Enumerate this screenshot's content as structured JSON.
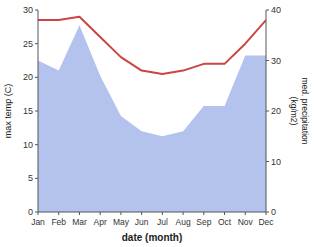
{
  "chart_data": {
    "type": "line",
    "categories": [
      "Jan",
      "Feb",
      "Mar",
      "Apr",
      "May",
      "Jun",
      "Jul",
      "Aug",
      "Sep",
      "Oct",
      "Nov",
      "Dec"
    ],
    "xlabel": "date (month)",
    "ylabel": "max temp (C)",
    "y2label": "med. precipitation\n(kg/m2)",
    "ylim": [
      0,
      30
    ],
    "yticks": [
      0,
      5,
      10,
      15,
      20,
      25,
      30
    ],
    "y2lim": [
      0,
      40
    ],
    "y2ticks": [
      0,
      10,
      20,
      30,
      40
    ],
    "grid": false,
    "series": [
      {
        "type": "area",
        "axis": "y2",
        "color": "#b3c3ee",
        "values": [
          30,
          28,
          37,
          27,
          19,
          16,
          15,
          16,
          21,
          21,
          31,
          31
        ]
      },
      {
        "type": "line",
        "color": "#cc4444",
        "values": [
          28.5,
          28.5,
          29.0,
          26.0,
          23.0,
          21.0,
          20.5,
          21.0,
          22.0,
          22.0,
          25.0,
          28.5
        ]
      }
    ]
  }
}
